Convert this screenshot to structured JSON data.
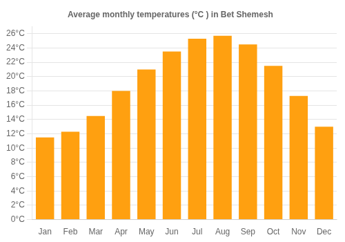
{
  "chart_data": {
    "type": "bar",
    "title": "Average monthly temperatures (°C ) in Bet Shemesh",
    "categories": [
      "Jan",
      "Feb",
      "Mar",
      "Apr",
      "May",
      "Jun",
      "Jul",
      "Aug",
      "Sep",
      "Oct",
      "Nov",
      "Dec"
    ],
    "values": [
      11.5,
      12.3,
      14.5,
      18.0,
      21.0,
      23.5,
      25.3,
      25.7,
      24.5,
      21.5,
      17.3,
      13.0
    ],
    "color": "#FFA010",
    "ylim": [
      0,
      27
    ],
    "yticks": [
      {
        "value": 0,
        "label": "0°C"
      },
      {
        "value": 2,
        "label": "2°C"
      },
      {
        "value": 4,
        "label": "4°C"
      },
      {
        "value": 6,
        "label": "6°C"
      },
      {
        "value": 8,
        "label": "8°C"
      },
      {
        "value": 10,
        "label": "10°C"
      },
      {
        "value": 12,
        "label": "12°C"
      },
      {
        "value": 14,
        "label": "14°C"
      },
      {
        "value": 16,
        "label": "16°C"
      },
      {
        "value": 18,
        "label": "18°C"
      },
      {
        "value": 20,
        "label": "20°C"
      },
      {
        "value": 22,
        "label": "22°C"
      },
      {
        "value": 24,
        "label": "24°C"
      },
      {
        "value": 26,
        "label": "26°C"
      }
    ],
    "grid": true
  }
}
